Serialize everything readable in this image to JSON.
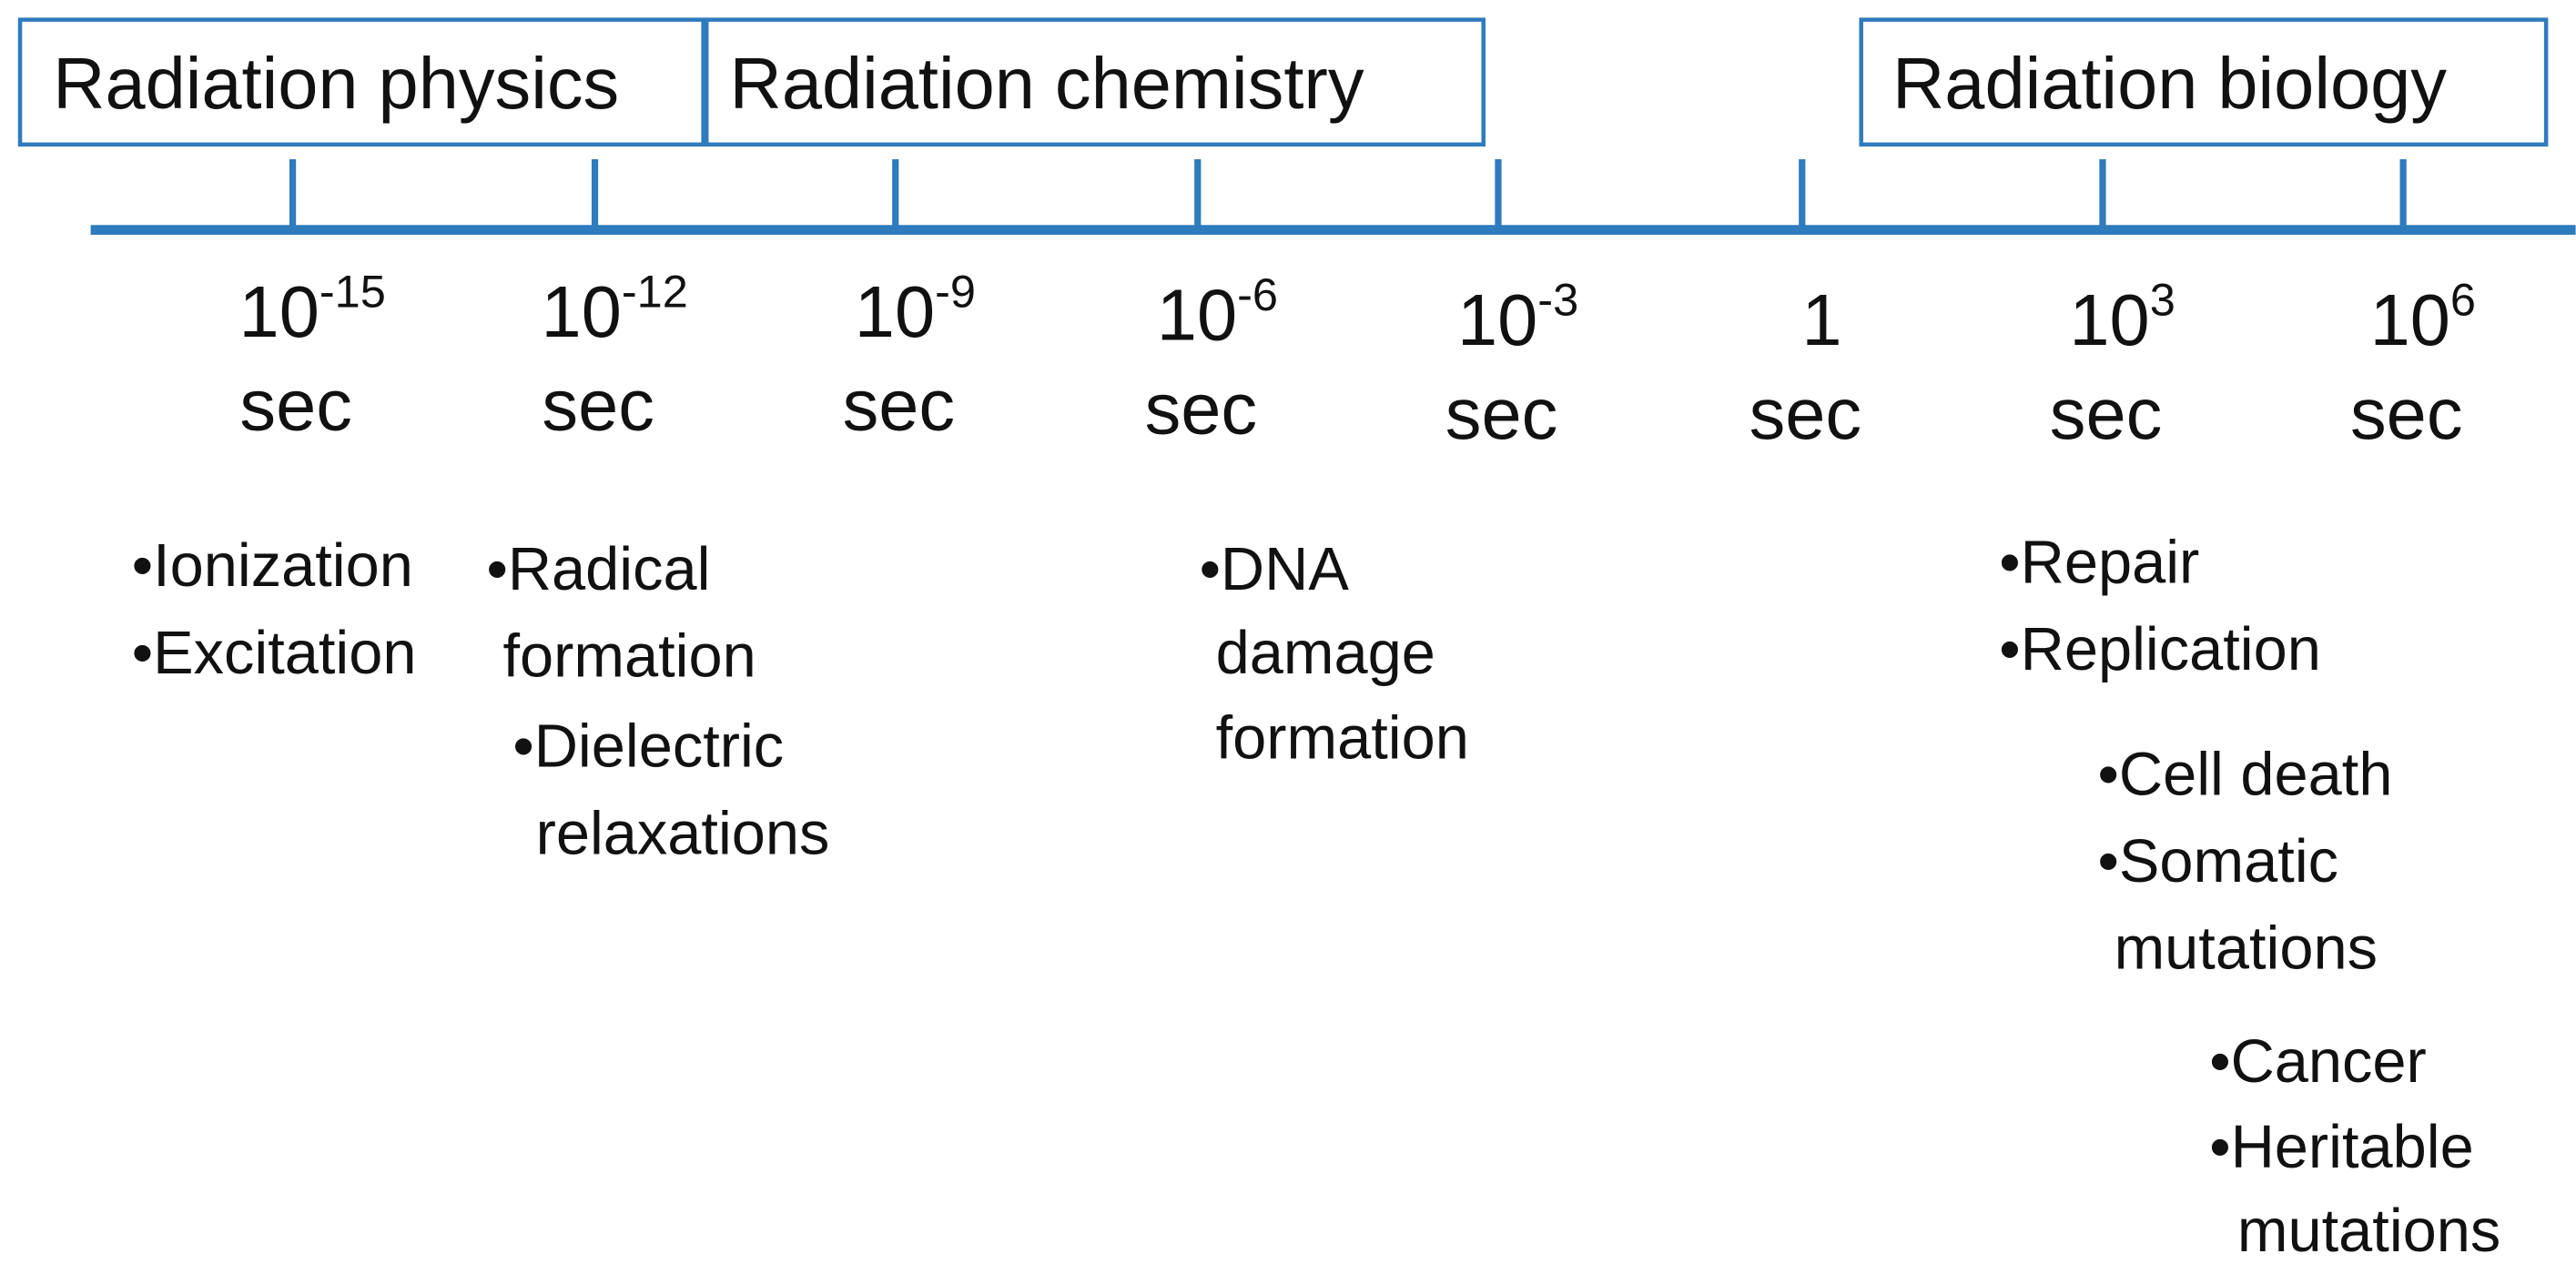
{
  "phases": [
    "Radiation physics",
    "Radiation chemistry",
    "Radiation biology"
  ],
  "ticks": [
    {
      "base": "10",
      "exponent": "-15",
      "unit": "sec"
    },
    {
      "base": "10",
      "exponent": "-12",
      "unit": "sec"
    },
    {
      "base": "10",
      "exponent": "-9",
      "unit": "sec"
    },
    {
      "base": "10",
      "exponent": "-6",
      "unit": "sec"
    },
    {
      "base": "10",
      "exponent": "-3",
      "unit": "sec"
    },
    {
      "base": "1",
      "unit": "sec"
    },
    {
      "base": "10",
      "exponent": "3",
      "unit": "sec"
    },
    {
      "base": "10",
      "exponent": "6",
      "unit": "sec"
    }
  ],
  "events": [
    [
      "•Ionization",
      "•Excitation"
    ],
    [
      "•Radical",
      "formation",
      "•Dielectric",
      "relaxations"
    ],
    [
      "•DNA",
      "damage",
      "formation"
    ],
    [
      "•Repair",
      "•Replication"
    ],
    [
      "•Cell death",
      "•Somatic",
      "mutations"
    ],
    [
      "•Cancer",
      "•Heritable",
      "mutations"
    ]
  ]
}
